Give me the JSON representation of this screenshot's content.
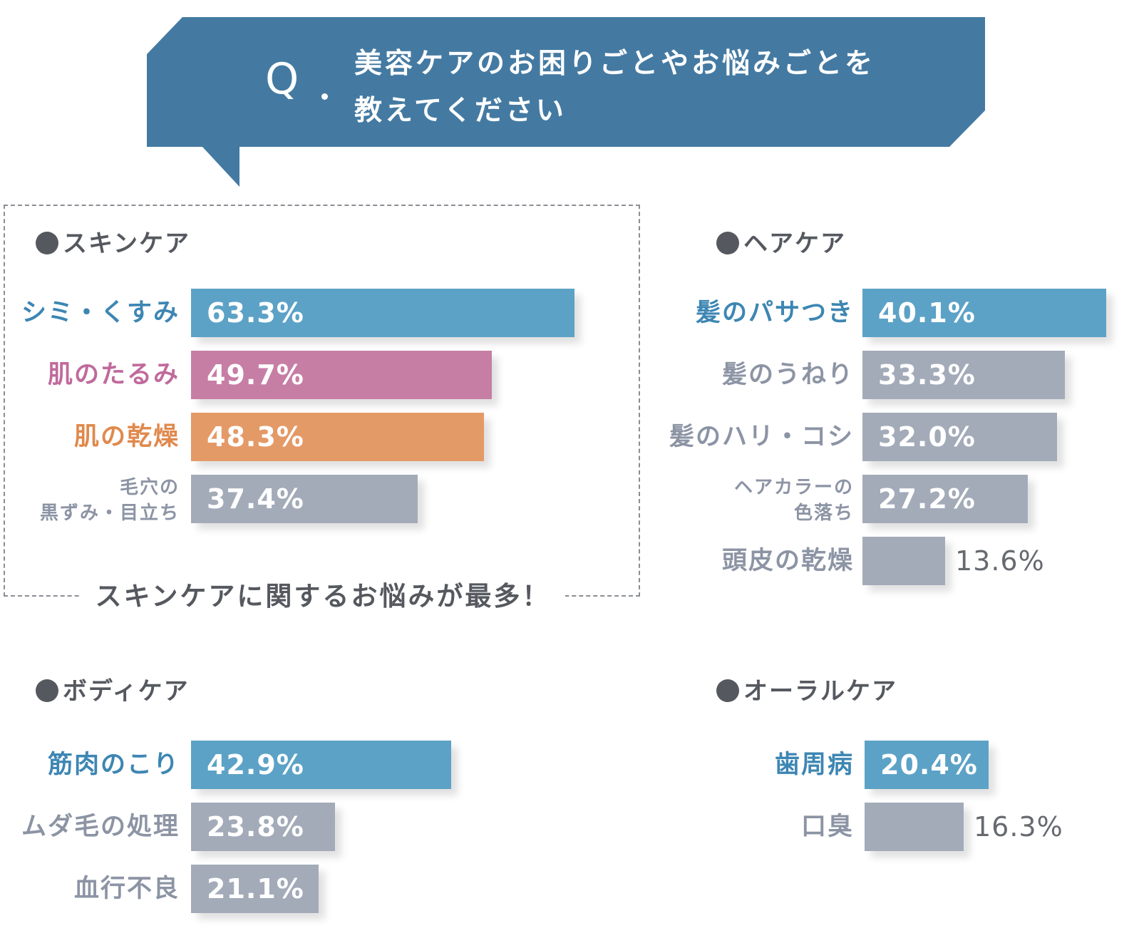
{
  "question": {
    "mark": "Q",
    "line1": "美容ケアのお困りごとやお悩みごとを",
    "line2": "教えてください"
  },
  "highlight": "スキンケアに関するお悩みが最多！",
  "colors": {
    "banner": "#447aa2",
    "blue": "#5ca2c6",
    "pink": "#c67ea5",
    "orange": "#e49a67",
    "gray": "#a3abb9",
    "label_blue": "#3d86b3",
    "label_pink": "#c06a9c",
    "label_orange": "#e0894d",
    "label_gray": "#8c94a4"
  },
  "chart_data": [
    {
      "type": "bar",
      "title": "●スキンケア",
      "categories": [
        "シミ・くすみ",
        "肌のたるみ",
        "肌の乾燥",
        "毛穴の\n黒ずみ・目立ち"
      ],
      "values": [
        63.3,
        49.7,
        48.3,
        37.4
      ],
      "value_labels": [
        "63.3%",
        "49.7%",
        "48.3%",
        "37.4%"
      ],
      "colors": [
        "blue",
        "pink",
        "orange",
        "gray"
      ]
    },
    {
      "type": "bar",
      "title": "●ヘアケア",
      "categories": [
        "髪のパサつき",
        "髪のうねり",
        "髪のハリ・コシ",
        "ヘアカラーの\n色落ち",
        "頭皮の乾燥"
      ],
      "values": [
        40.1,
        33.3,
        32.0,
        27.2,
        13.6
      ],
      "value_labels": [
        "40.1%",
        "33.3%",
        "32.0%",
        "27.2%",
        "13.6%"
      ],
      "colors": [
        "blue",
        "gray",
        "gray",
        "gray",
        "gray"
      ]
    },
    {
      "type": "bar",
      "title": "●ボディケア",
      "categories": [
        "筋肉のこり",
        "ムダ毛の処理",
        "血行不良"
      ],
      "values": [
        42.9,
        23.8,
        21.1
      ],
      "value_labels": [
        "42.9%",
        "23.8%",
        "21.1%"
      ],
      "colors": [
        "blue",
        "gray",
        "gray"
      ]
    },
    {
      "type": "bar",
      "title": "●オーラルケア",
      "categories": [
        "歯周病",
        "口臭"
      ],
      "values": [
        20.4,
        16.3
      ],
      "value_labels": [
        "20.4%",
        "16.3%"
      ],
      "colors": [
        "blue",
        "gray"
      ]
    }
  ]
}
